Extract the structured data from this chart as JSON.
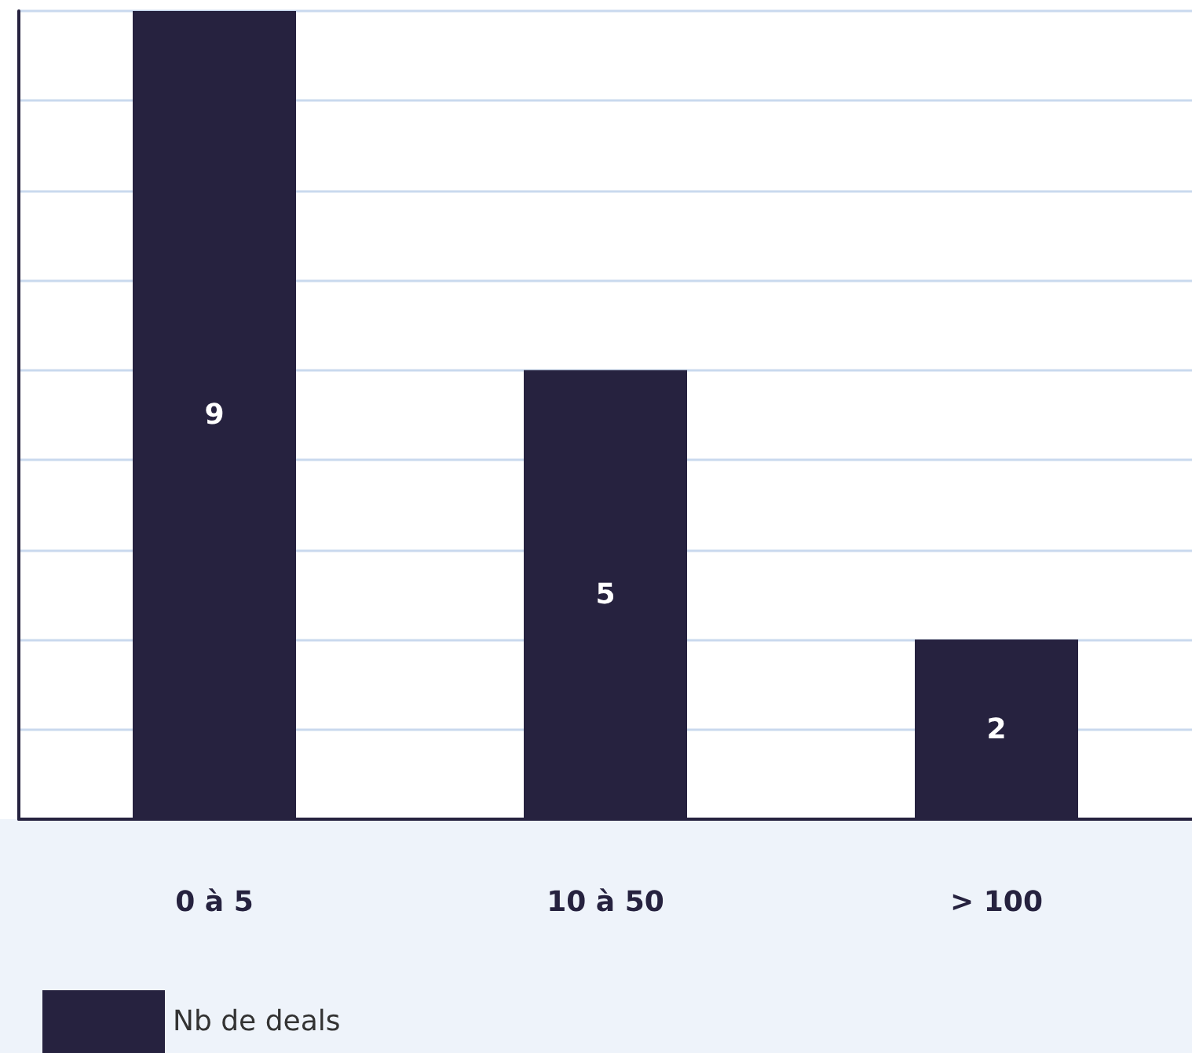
{
  "chart_data": {
    "type": "bar",
    "categories": [
      "0 à 5",
      "10 à 50",
      "> 100"
    ],
    "series": [
      {
        "name": "Nb de deals",
        "color": "#26223f",
        "values": [
          9,
          5,
          2
        ]
      }
    ],
    "ylim": [
      0,
      9
    ],
    "yticks": [
      {
        "value": 0,
        "label": null
      },
      {
        "value": 1,
        "label": null
      },
      {
        "value": 2,
        "label": null
      },
      {
        "value": 3,
        "label": null
      },
      {
        "value": 4,
        "label": null
      },
      {
        "value": 5,
        "label": null
      },
      {
        "value": 6,
        "label": null
      },
      {
        "value": 7,
        "label": null
      },
      {
        "value": 8,
        "label": null
      },
      {
        "value": 9,
        "label": null
      }
    ],
    "tick_labels": "x",
    "grid": "y",
    "data_labels": true,
    "legend": "bottom left"
  }
}
